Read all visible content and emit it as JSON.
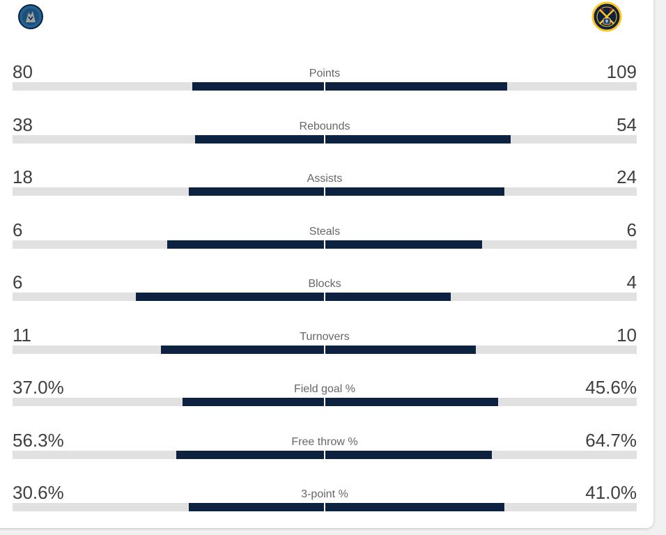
{
  "teams": {
    "home": {
      "logo": "timberwolves-logo-icon"
    },
    "away": {
      "logo": "nuggets-logo-icon"
    }
  },
  "colors": {
    "bar_fill": "#0d2240",
    "bar_track": "#e1e1e1",
    "value_text": "#3f3f3f",
    "label_text": "#666666"
  },
  "stats": [
    {
      "label": "Points",
      "home": "80",
      "away": "109",
      "home_share": 0.42,
      "away_share": 0.58
    },
    {
      "label": "Rebounds",
      "home": "38",
      "away": "54",
      "home_share": 0.41,
      "away_share": 0.59
    },
    {
      "label": "Assists",
      "home": "18",
      "away": "24",
      "home_share": 0.43,
      "away_share": 0.57
    },
    {
      "label": "Steals",
      "home": "6",
      "away": "6",
      "home_share": 0.5,
      "away_share": 0.5
    },
    {
      "label": "Blocks",
      "home": "6",
      "away": "4",
      "home_share": 0.6,
      "away_share": 0.4
    },
    {
      "label": "Turnovers",
      "home": "11",
      "away": "10",
      "home_share": 0.52,
      "away_share": 0.48
    },
    {
      "label": "Field goal %",
      "home": "37.0%",
      "away": "45.6%",
      "home_share": 0.45,
      "away_share": 0.55
    },
    {
      "label": "Free throw %",
      "home": "56.3%",
      "away": "64.7%",
      "home_share": 0.47,
      "away_share": 0.53
    },
    {
      "label": "3-point %",
      "home": "30.6%",
      "away": "41.0%",
      "home_share": 0.43,
      "away_share": 0.57
    }
  ]
}
